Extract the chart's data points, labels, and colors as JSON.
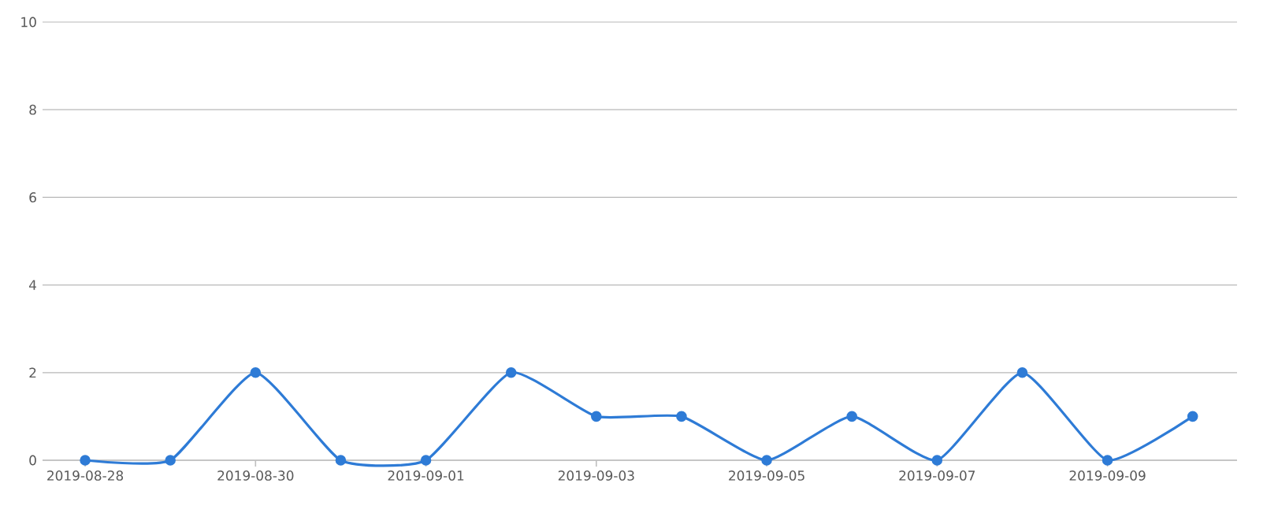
{
  "chart_data": {
    "type": "line",
    "x": [
      "2019-08-28",
      "2019-08-29",
      "2019-08-30",
      "2019-08-31",
      "2019-09-01",
      "2019-09-02",
      "2019-09-03",
      "2019-09-04",
      "2019-09-05",
      "2019-09-06",
      "2019-09-07",
      "2019-09-08",
      "2019-09-09",
      "2019-09-10"
    ],
    "series": [
      {
        "color": "#2e7bd6",
        "values": [
          0,
          0,
          2,
          0,
          0,
          2,
          1,
          1,
          0,
          1,
          0,
          2,
          0,
          1
        ]
      }
    ],
    "xlim": [
      "2019-08-27T12:00",
      "2019-09-10T12:30"
    ],
    "xticks": [
      "2019-08-28",
      "2019-08-30",
      "2019-09-01",
      "2019-09-03",
      "2019-09-05",
      "2019-09-07",
      "2019-09-09"
    ],
    "ylim": [
      0,
      10
    ],
    "yticks": [
      0,
      2,
      4,
      6,
      8,
      10
    ],
    "grid": "y",
    "marker": "circle",
    "line_style": "solid",
    "legend": false
  }
}
